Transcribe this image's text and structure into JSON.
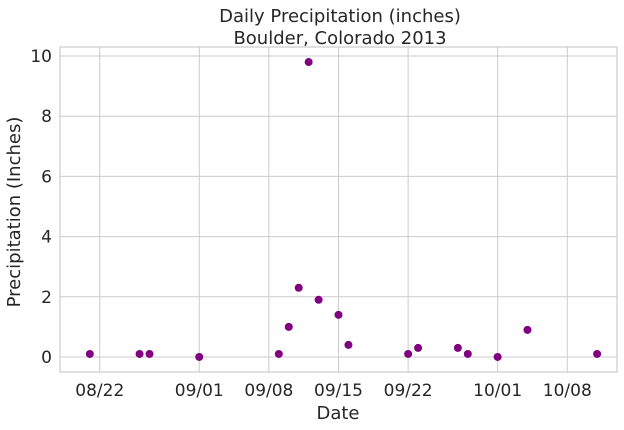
{
  "chart_data": {
    "type": "scatter",
    "title": "Daily Precipitation (inches)",
    "subtitle": "Boulder, Colorado 2013",
    "xlabel": "Date",
    "ylabel": "Precipitation (Inches)",
    "x_ticks": [
      {
        "date": "2013-08-22",
        "label": "08/22"
      },
      {
        "date": "2013-09-01",
        "label": "09/01"
      },
      {
        "date": "2013-09-08",
        "label": "09/08"
      },
      {
        "date": "2013-09-15",
        "label": "09/15"
      },
      {
        "date": "2013-09-22",
        "label": "09/22"
      },
      {
        "date": "2013-10-01",
        "label": "10/01"
      },
      {
        "date": "2013-10-08",
        "label": "10/08"
      }
    ],
    "y_ticks": [
      {
        "value": 0,
        "label": "0"
      },
      {
        "value": 2,
        "label": "2"
      },
      {
        "value": 4,
        "label": "4"
      },
      {
        "value": 6,
        "label": "6"
      },
      {
        "value": 8,
        "label": "8"
      },
      {
        "value": 10,
        "label": "10"
      }
    ],
    "xlim": [
      "2013-08-18",
      "2013-10-13"
    ],
    "ylim": [
      -0.5,
      10.3
    ],
    "grid": true,
    "color": "#800080",
    "points": [
      {
        "x": "2013-08-21",
        "y": 0.1
      },
      {
        "x": "2013-08-26",
        "y": 0.1
      },
      {
        "x": "2013-08-27",
        "y": 0.1
      },
      {
        "x": "2013-09-01",
        "y": 0.0
      },
      {
        "x": "2013-09-09",
        "y": 0.1
      },
      {
        "x": "2013-09-10",
        "y": 1.0
      },
      {
        "x": "2013-09-11",
        "y": 2.3
      },
      {
        "x": "2013-09-12",
        "y": 9.8
      },
      {
        "x": "2013-09-13",
        "y": 1.9
      },
      {
        "x": "2013-09-15",
        "y": 1.4
      },
      {
        "x": "2013-09-16",
        "y": 0.4
      },
      {
        "x": "2013-09-22",
        "y": 0.1
      },
      {
        "x": "2013-09-23",
        "y": 0.3
      },
      {
        "x": "2013-09-27",
        "y": 0.3
      },
      {
        "x": "2013-09-28",
        "y": 0.1
      },
      {
        "x": "2013-10-01",
        "y": 0.0
      },
      {
        "x": "2013-10-04",
        "y": 0.9
      },
      {
        "x": "2013-10-11",
        "y": 0.1
      }
    ]
  }
}
